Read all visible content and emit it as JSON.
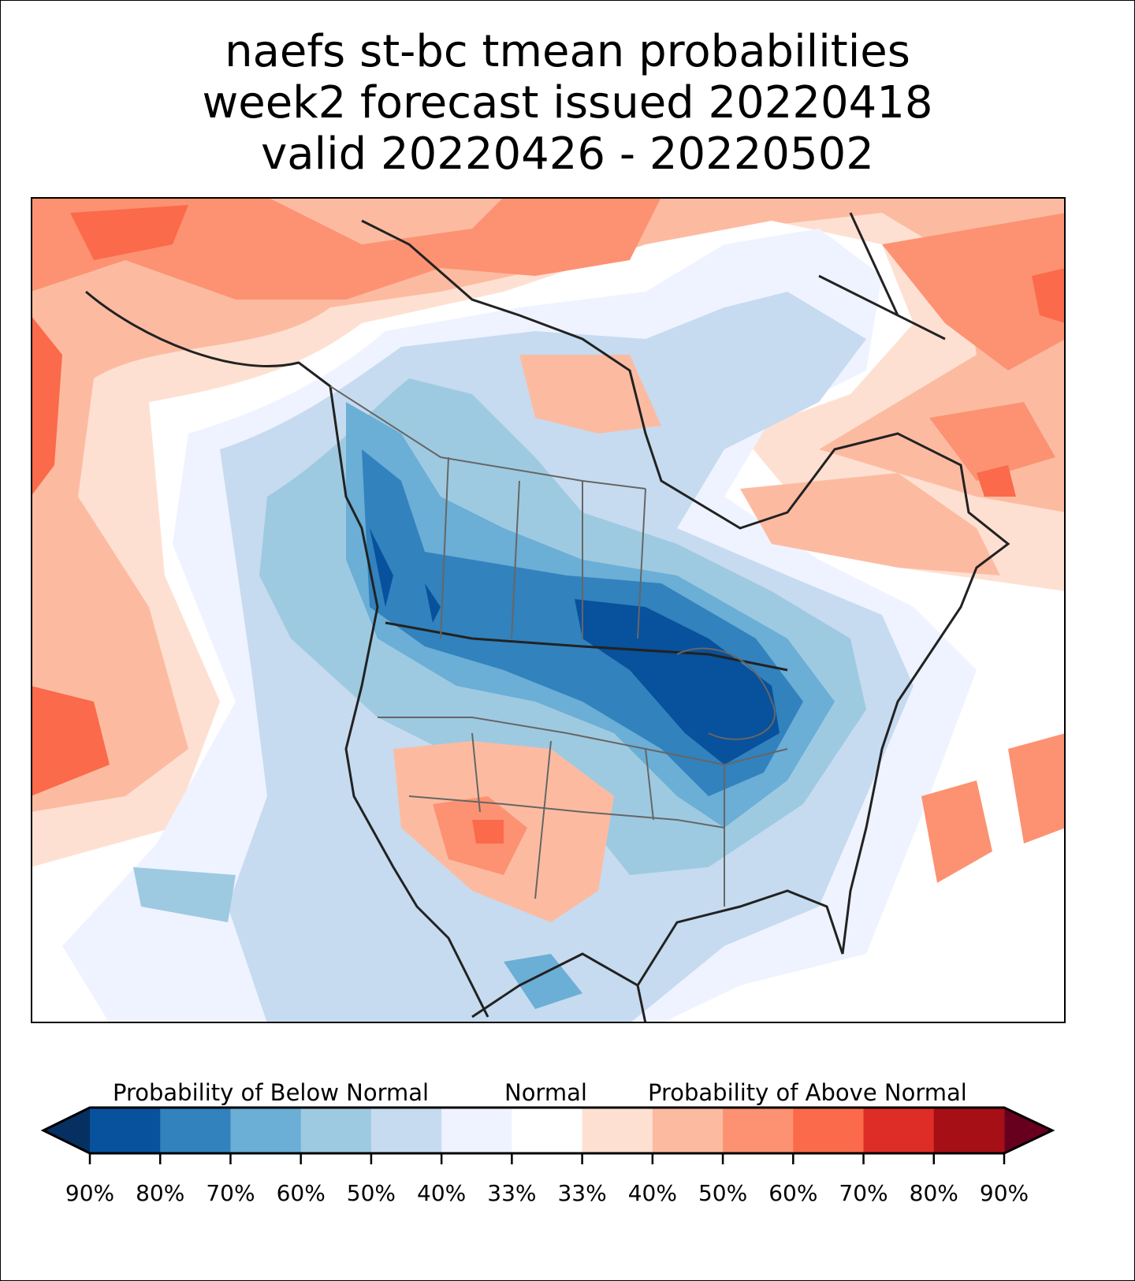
{
  "title": {
    "line1": "naefs st-bc tmean probabilities",
    "line2": "week2 forecast issued 20220418",
    "line3": "valid 20220426 - 20220502"
  },
  "colorbar": {
    "label_below": "Probability of Below Normal",
    "label_normal": "Normal",
    "label_above": "Probability of Above Normal",
    "extend_low_color": "#053061",
    "extend_high_color": "#67001f",
    "colors": [
      "#08519c",
      "#3182bd",
      "#6baed6",
      "#9ecae1",
      "#c6dbef",
      "#eff3ff",
      "#ffffff",
      "#fee0d2",
      "#fcbba1",
      "#fc9272",
      "#fb6a4a",
      "#de2d26",
      "#a50f15"
    ],
    "ticks": [
      "90%",
      "80%",
      "70%",
      "60%",
      "50%",
      "40%",
      "33%",
      "33%",
      "40%",
      "50%",
      "60%",
      "70%",
      "80%",
      "90%"
    ]
  }
}
